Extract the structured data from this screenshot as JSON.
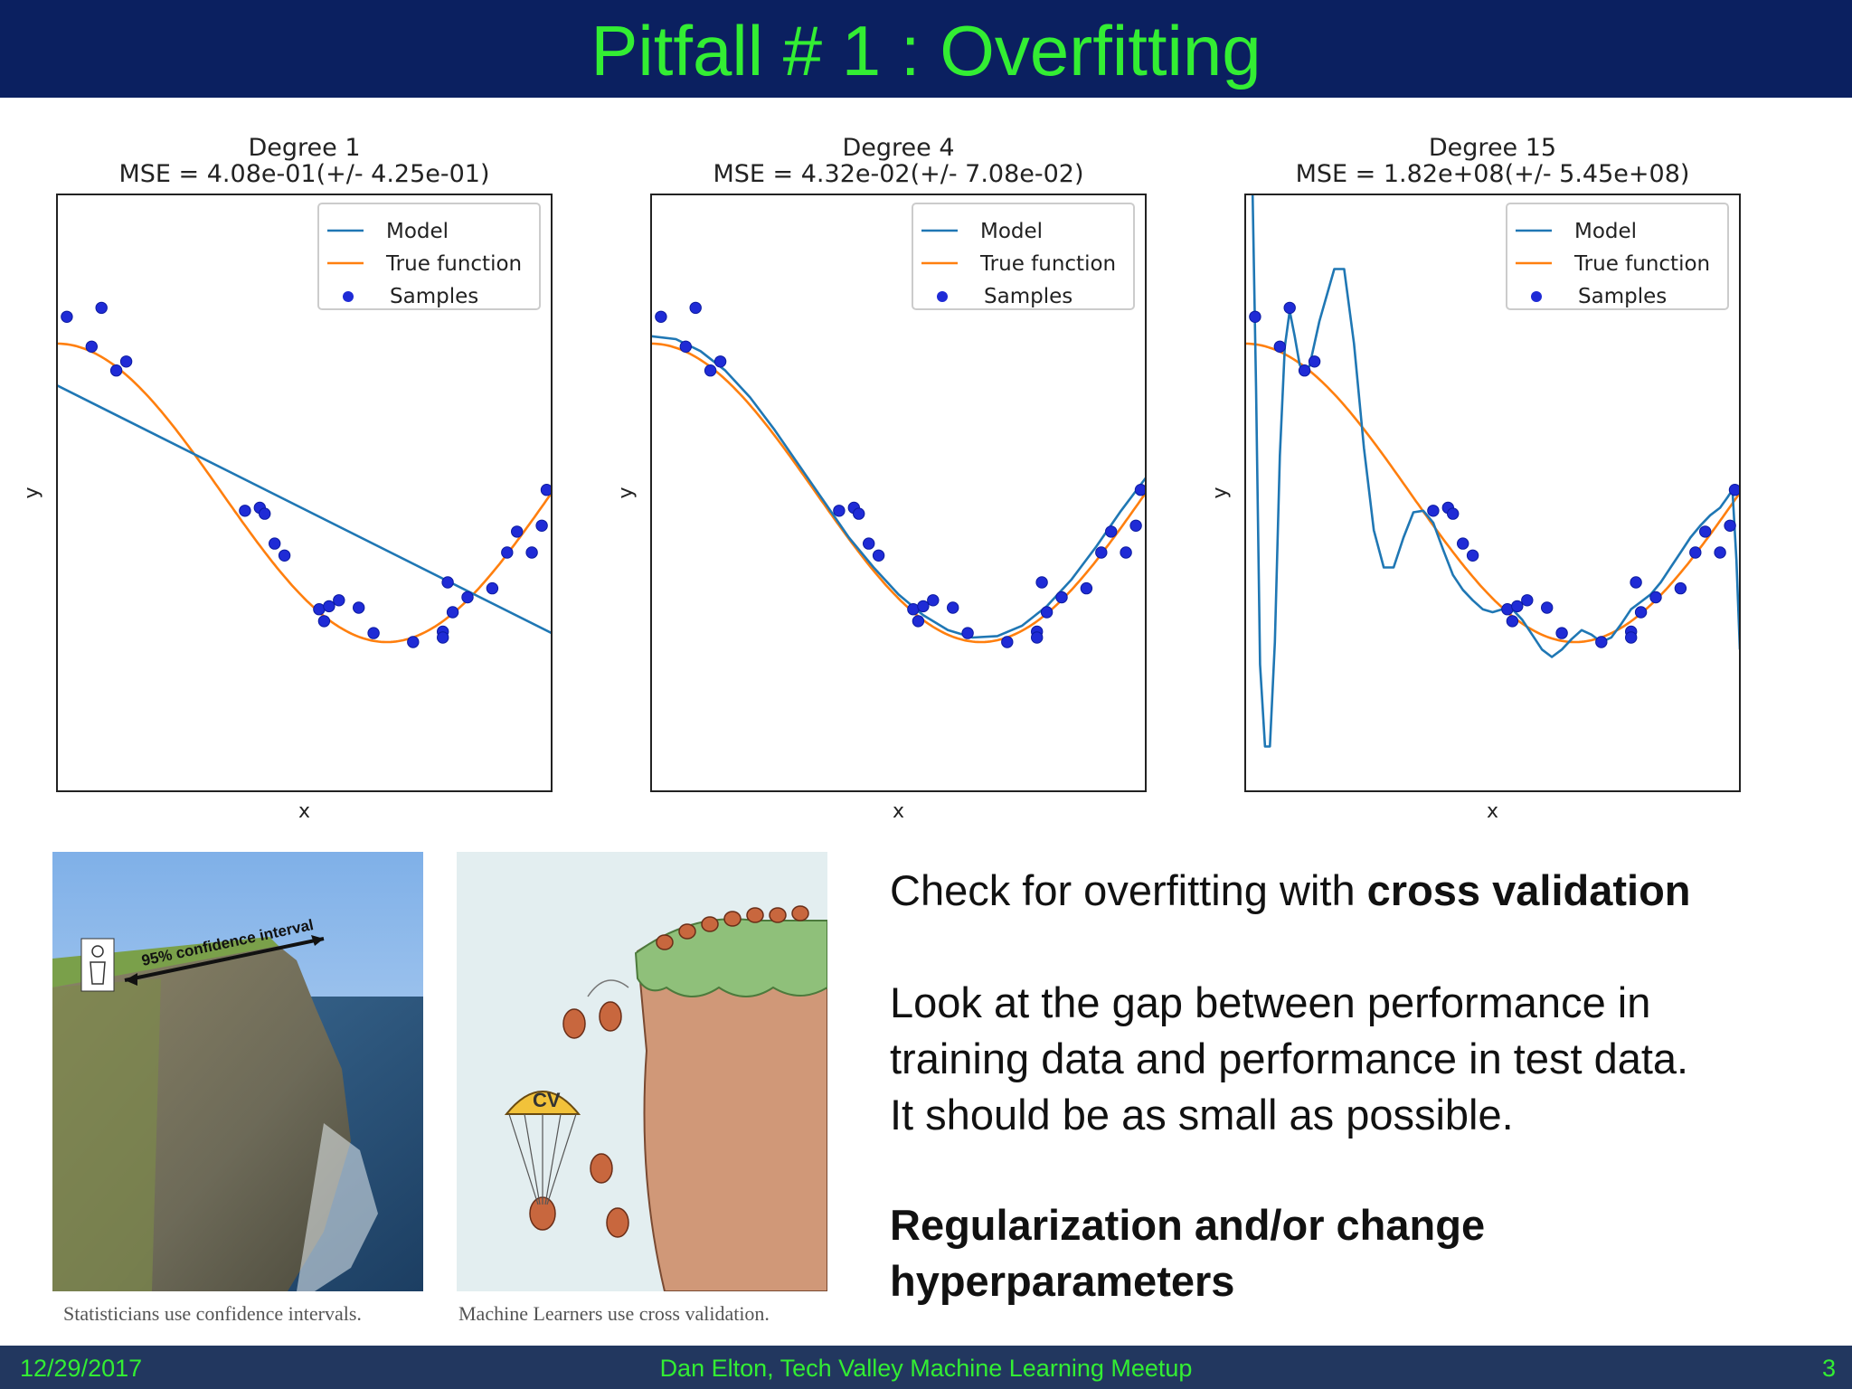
{
  "slide": {
    "title": "Pitfall # 1 : Overfitting",
    "colors": {
      "header_bg": "#0b2060",
      "title": "#33ee33",
      "footer_bg": "#22375f",
      "footer_text": "#33ee33"
    }
  },
  "chart_data": [
    {
      "type": "line",
      "title": "Degree 1",
      "subtitle": "MSE = 4.08e-01(+/- 4.25e-01)",
      "xlabel": "x",
      "ylabel": "y",
      "xlim": [
        0,
        1
      ],
      "ylim": [
        -2,
        2
      ],
      "legend": {
        "placement": "top-right",
        "entries": [
          "Model",
          "True function",
          "Samples"
        ]
      },
      "series": [
        {
          "name": "Model",
          "color": "#1f77b4",
          "x": [
            0,
            1
          ],
          "y": [
            0.72,
            -0.94
          ]
        },
        {
          "name": "True function",
          "color": "#ff7f0e",
          "function": "cos(1.5*pi*x)"
        },
        {
          "name": "Samples",
          "color": "#1f2bd6",
          "kind": "scatter",
          "x": [
            0.02,
            0.07,
            0.09,
            0.12,
            0.14,
            0.38,
            0.41,
            0.42,
            0.44,
            0.46,
            0.53,
            0.54,
            0.55,
            0.57,
            0.61,
            0.64,
            0.72,
            0.78,
            0.78,
            0.79,
            0.8,
            0.83,
            0.88,
            0.91,
            0.93,
            0.96,
            0.98,
            0.99
          ],
          "y": [
            1.18,
            0.98,
            1.24,
            0.82,
            0.88,
            -0.12,
            -0.1,
            -0.14,
            -0.34,
            -0.42,
            -0.78,
            -0.86,
            -0.76,
            -0.72,
            -0.77,
            -0.94,
            -1.0,
            -0.93,
            -0.97,
            -0.6,
            -0.8,
            -0.7,
            -0.64,
            -0.4,
            -0.26,
            -0.4,
            -0.22,
            0.02
          ]
        }
      ]
    },
    {
      "type": "line",
      "title": "Degree 4",
      "subtitle": "MSE = 4.32e-02(+/- 7.08e-02)",
      "xlabel": "x",
      "ylabel": "y",
      "xlim": [
        0,
        1
      ],
      "ylim": [
        -2,
        2
      ],
      "legend": {
        "placement": "top-right",
        "entries": [
          "Model",
          "True function",
          "Samples"
        ]
      },
      "series": [
        {
          "name": "Model",
          "color": "#1f77b4",
          "x": [
            0,
            0.05,
            0.1,
            0.15,
            0.2,
            0.25,
            0.3,
            0.35,
            0.4,
            0.45,
            0.5,
            0.55,
            0.6,
            0.65,
            0.7,
            0.75,
            0.8,
            0.85,
            0.9,
            0.95,
            1.0
          ],
          "y": [
            1.05,
            1.03,
            0.95,
            0.82,
            0.64,
            0.42,
            0.18,
            -0.06,
            -0.3,
            -0.5,
            -0.68,
            -0.82,
            -0.92,
            -0.97,
            -0.96,
            -0.89,
            -0.76,
            -0.58,
            -0.36,
            -0.12,
            0.1
          ]
        },
        {
          "name": "True function",
          "color": "#ff7f0e",
          "function": "cos(1.5*pi*x)"
        },
        {
          "name": "Samples",
          "color": "#1f2bd6",
          "kind": "scatter",
          "x": [
            0.02,
            0.07,
            0.09,
            0.12,
            0.14,
            0.38,
            0.41,
            0.42,
            0.44,
            0.46,
            0.53,
            0.54,
            0.55,
            0.57,
            0.61,
            0.64,
            0.72,
            0.78,
            0.78,
            0.79,
            0.8,
            0.83,
            0.88,
            0.91,
            0.93,
            0.96,
            0.98,
            0.99
          ],
          "y": [
            1.18,
            0.98,
            1.24,
            0.82,
            0.88,
            -0.12,
            -0.1,
            -0.14,
            -0.34,
            -0.42,
            -0.78,
            -0.86,
            -0.76,
            -0.72,
            -0.77,
            -0.94,
            -1.0,
            -0.93,
            -0.97,
            -0.6,
            -0.8,
            -0.7,
            -0.64,
            -0.4,
            -0.26,
            -0.4,
            -0.22,
            0.02
          ]
        }
      ]
    },
    {
      "type": "line",
      "title": "Degree 15",
      "subtitle": "MSE = 1.82e+08(+/- 5.45e+08)",
      "xlabel": "x",
      "ylabel": "y",
      "xlim": [
        0,
        1
      ],
      "ylim": [
        -2,
        2
      ],
      "legend": {
        "placement": "top-right",
        "entries": [
          "Model",
          "True function",
          "Samples"
        ]
      },
      "series": [
        {
          "name": "Model",
          "color": "#1f77b4",
          "x": [
            0.015,
            0.022,
            0.03,
            0.04,
            0.05,
            0.06,
            0.07,
            0.08,
            0.09,
            0.1,
            0.11,
            0.12,
            0.13,
            0.15,
            0.18,
            0.2,
            0.22,
            0.24,
            0.26,
            0.28,
            0.3,
            0.32,
            0.34,
            0.36,
            0.38,
            0.4,
            0.42,
            0.44,
            0.46,
            0.48,
            0.5,
            0.52,
            0.54,
            0.56,
            0.58,
            0.6,
            0.62,
            0.64,
            0.66,
            0.68,
            0.7,
            0.72,
            0.74,
            0.76,
            0.78,
            0.8,
            0.82,
            0.84,
            0.86,
            0.88,
            0.9,
            0.92,
            0.94,
            0.96,
            0.975,
            0.985,
            0.993,
            1.0
          ],
          "y": [
            2.0,
            0.7,
            -1.15,
            -1.7,
            -1.7,
            -1.0,
            0.25,
            0.98,
            1.22,
            1.05,
            0.86,
            0.8,
            0.85,
            1.15,
            1.5,
            1.5,
            1.0,
            0.3,
            -0.25,
            -0.5,
            -0.5,
            -0.3,
            -0.13,
            -0.12,
            -0.2,
            -0.38,
            -0.55,
            -0.65,
            -0.72,
            -0.78,
            -0.8,
            -0.78,
            -0.78,
            -0.85,
            -0.95,
            -1.05,
            -1.1,
            -1.05,
            -0.98,
            -0.92,
            -0.95,
            -1.0,
            -0.97,
            -0.88,
            -0.78,
            -0.73,
            -0.68,
            -0.6,
            -0.5,
            -0.4,
            -0.3,
            -0.22,
            -0.15,
            -0.1,
            -0.03,
            0.02,
            -0.45,
            -1.05
          ]
        },
        {
          "name": "True function",
          "color": "#ff7f0e",
          "function": "cos(1.5*pi*x)"
        },
        {
          "name": "Samples",
          "color": "#1f2bd6",
          "kind": "scatter",
          "x": [
            0.02,
            0.07,
            0.09,
            0.12,
            0.14,
            0.38,
            0.41,
            0.42,
            0.44,
            0.46,
            0.53,
            0.54,
            0.55,
            0.57,
            0.61,
            0.64,
            0.72,
            0.78,
            0.78,
            0.79,
            0.8,
            0.83,
            0.88,
            0.91,
            0.93,
            0.96,
            0.98,
            0.99
          ],
          "y": [
            1.18,
            0.98,
            1.24,
            0.82,
            0.88,
            -0.12,
            -0.1,
            -0.14,
            -0.34,
            -0.42,
            -0.78,
            -0.86,
            -0.76,
            -0.72,
            -0.77,
            -0.94,
            -1.0,
            -0.93,
            -0.97,
            -0.6,
            -0.8,
            -0.7,
            -0.64,
            -0.4,
            -0.26,
            -0.4,
            -0.22,
            0.02
          ]
        }
      ]
    }
  ],
  "images": {
    "left": {
      "caption": "Statisticians use confidence intervals.",
      "annotation": "95% confidence interval"
    },
    "right": {
      "caption": "Machine Learners use cross validation.",
      "annotation": "CV"
    }
  },
  "text": {
    "line1_pre": "Check for overfitting with ",
    "line1_bold": "cross validation",
    "para2_a": "Look at the gap between performance in",
    "para2_b": "training data and performance in test data.",
    "para2_c": "It should be as small as possible.",
    "bold_a": "Regularization and/or change",
    "bold_b": "hyperparameters"
  },
  "footer": {
    "date": "12/29/2017",
    "center": "Dan Elton, Tech Valley Machine Learning Meetup",
    "page": "3"
  }
}
